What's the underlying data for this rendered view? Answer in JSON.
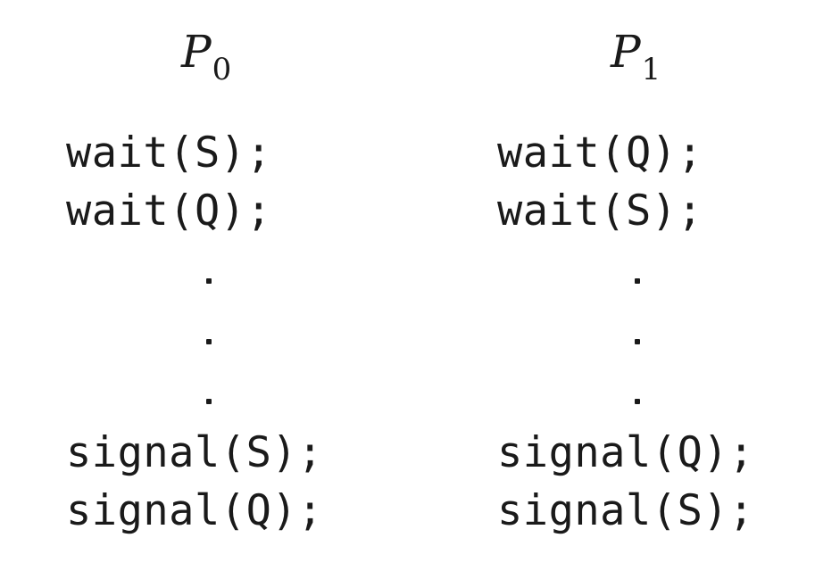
{
  "processes": [
    {
      "name": "P",
      "subscript": "0",
      "lines_before": [
        "wait(S);",
        "wait(Q);"
      ],
      "lines_after": [
        "signal(S);",
        "signal(Q);"
      ]
    },
    {
      "name": "P",
      "subscript": "1",
      "lines_before": [
        "wait(Q);",
        "wait(S);"
      ],
      "lines_after": [
        "signal(Q);",
        "signal(S);"
      ]
    }
  ]
}
